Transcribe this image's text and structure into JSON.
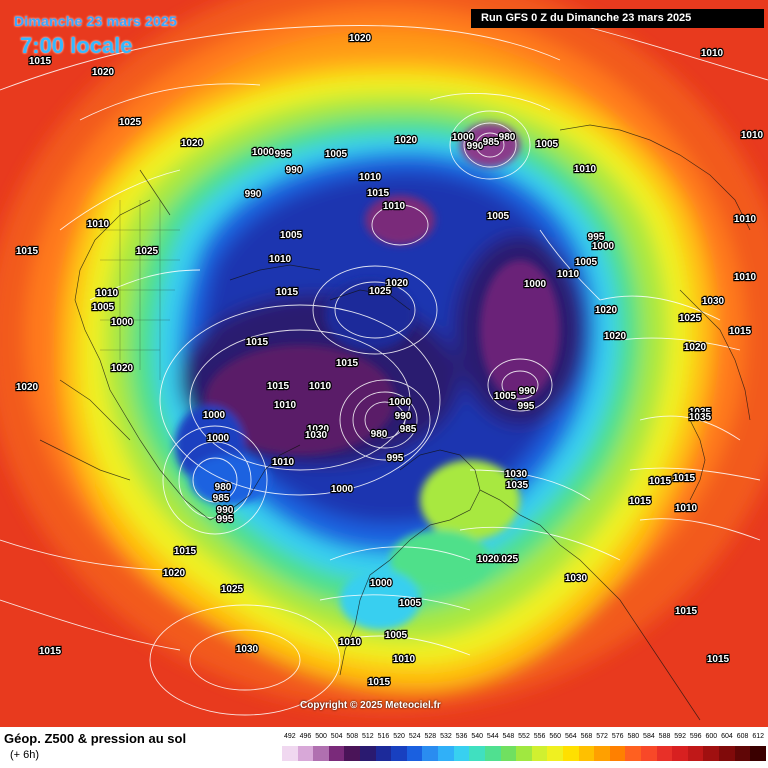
{
  "header": {
    "date": "Dimanche 23 mars 2025",
    "time": "7:00 locale",
    "run": "Run GFS 0 Z du Dimanche 23 mars 2025"
  },
  "copyright": "Copyright © 2025 Meteociel.fr",
  "footer": {
    "title": "Géop. Z500 & pression au sol",
    "subtitle": "(+ 6h)"
  },
  "scale": {
    "labels": [
      "492",
      "496",
      "500",
      "504",
      "508",
      "512",
      "516",
      "520",
      "524",
      "528",
      "532",
      "536",
      "540",
      "544",
      "548",
      "552",
      "556",
      "560",
      "564",
      "568",
      "572",
      "576",
      "580",
      "584",
      "588",
      "592",
      "596",
      "600",
      "604",
      "608",
      "612"
    ],
    "colors": [
      "#f0d8f0",
      "#d8a8d8",
      "#b070b0",
      "#7a2a7a",
      "#4a1458",
      "#2a1a70",
      "#1c2a9a",
      "#1840c0",
      "#1a60e0",
      "#2a8cf0",
      "#30b0f8",
      "#38d0f0",
      "#40e0c0",
      "#50e090",
      "#70e060",
      "#a0e840",
      "#d0f030",
      "#f0f020",
      "#ffe000",
      "#ffc000",
      "#ffa000",
      "#ff8000",
      "#ff6020",
      "#f84828",
      "#e83028",
      "#d82020",
      "#c01818",
      "#a01010",
      "#800a0a",
      "#600606",
      "#3a0000"
    ]
  },
  "isobar_labels": [
    {
      "text": "1020",
      "pos": "top-center"
    },
    {
      "text": "1015",
      "pos": "top-left"
    },
    {
      "text": "1020",
      "pos": "top-left-2"
    },
    {
      "text": "1025",
      "pos": "left-upper"
    },
    {
      "text": "1020",
      "pos": "left-upper-2"
    },
    {
      "text": "1000",
      "pos": "pacific-north"
    },
    {
      "text": "995",
      "pos": "pacific-north-2"
    },
    {
      "text": "990",
      "pos": "pacific-north-3"
    },
    {
      "text": "990",
      "pos": "pacific-north-4"
    },
    {
      "text": "1005",
      "pos": "pacific-north-5"
    },
    {
      "text": "1020",
      "pos": "siberia-north"
    },
    {
      "text": "1000",
      "pos": "siberia-low-1"
    },
    {
      "text": "990",
      "pos": "siberia-low-2"
    },
    {
      "text": "985",
      "pos": "siberia-low-3"
    },
    {
      "text": "980",
      "pos": "siberia-low-4"
    },
    {
      "text": "1005",
      "pos": "siberia-east"
    },
    {
      "text": "1010",
      "pos": "arctic-1"
    },
    {
      "text": "1015",
      "pos": "arctic-2"
    },
    {
      "text": "1010",
      "pos": "arctic-3"
    },
    {
      "text": "1005",
      "pos": "arctic-4"
    },
    {
      "text": "1010",
      "pos": "asia-east-1"
    },
    {
      "text": "995",
      "pos": "asia-east-2"
    },
    {
      "text": "1000",
      "pos": "asia-east-3"
    },
    {
      "text": "1005",
      "pos": "asia-east-4"
    },
    {
      "text": "1010",
      "pos": "asia-east-5"
    },
    {
      "text": "1010",
      "pos": "right-edge-1"
    },
    {
      "text": "1010",
      "pos": "right-edge-2"
    },
    {
      "text": "1010",
      "pos": "right-edge-3"
    },
    {
      "text": "1010",
      "pos": "right-edge-4"
    },
    {
      "text": "1010",
      "pos": "west-1"
    },
    {
      "text": "1025",
      "pos": "west-2"
    },
    {
      "text": "1015",
      "pos": "west-3"
    },
    {
      "text": "1010",
      "pos": "west-4"
    },
    {
      "text": "1005",
      "pos": "west-5"
    },
    {
      "text": "1000",
      "pos": "west-6"
    },
    {
      "text": "1005",
      "pos": "center-1"
    },
    {
      "text": "1010",
      "pos": "center-2"
    },
    {
      "text": "1015",
      "pos": "center-3"
    },
    {
      "text": "1020",
      "pos": "center-4"
    },
    {
      "text": "1025",
      "pos": "center-5"
    },
    {
      "text": "1000",
      "pos": "center-6"
    },
    {
      "text": "1020",
      "pos": "east-1"
    },
    {
      "text": "1020",
      "pos": "east-2"
    },
    {
      "text": "1030",
      "pos": "east-3"
    },
    {
      "text": "1025",
      "pos": "east-4"
    },
    {
      "text": "1015",
      "pos": "east-5"
    },
    {
      "text": "1020",
      "pos": "east-6"
    },
    {
      "text": "1015",
      "pos": "center-7"
    },
    {
      "text": "1015",
      "pos": "center-8"
    },
    {
      "text": "1020",
      "pos": "west-7"
    },
    {
      "text": "1020",
      "pos": "west-8"
    },
    {
      "text": "1015",
      "pos": "center-9"
    },
    {
      "text": "1010",
      "pos": "center-10"
    },
    {
      "text": "990",
      "pos": "east-low-1"
    },
    {
      "text": "1005",
      "pos": "east-low-2"
    },
    {
      "text": "995",
      "pos": "east-low-3"
    },
    {
      "text": "1000",
      "pos": "atl-west-1"
    },
    {
      "text": "1000",
      "pos": "atl-west-2"
    },
    {
      "text": "1010",
      "pos": "atl-center-1"
    },
    {
      "text": "1020",
      "pos": "atl-center-2"
    },
    {
      "text": "1030",
      "pos": "atl-center-3"
    },
    {
      "text": "1000",
      "pos": "atl-low-1"
    },
    {
      "text": "990",
      "pos": "atl-low-2"
    },
    {
      "text": "985",
      "pos": "atl-low-3"
    },
    {
      "text": "980",
      "pos": "atl-low-4"
    },
    {
      "text": "995",
      "pos": "atl-low-5"
    },
    {
      "text": "1035",
      "pos": "east-7"
    },
    {
      "text": "1035",
      "pos": "east-8"
    },
    {
      "text": "1015",
      "pos": "east-9"
    },
    {
      "text": "1010",
      "pos": "atl-1"
    },
    {
      "text": "980",
      "pos": "pac-low-1"
    },
    {
      "text": "985",
      "pos": "pac-low-2"
    },
    {
      "text": "990",
      "pos": "pac-low-3"
    },
    {
      "text": "995",
      "pos": "pac-low-4"
    },
    {
      "text": "1000",
      "pos": "atl-2"
    },
    {
      "text": "1030",
      "pos": "europe-1"
    },
    {
      "text": "1035",
      "pos": "europe-2"
    },
    {
      "text": "1015",
      "pos": "east-10"
    },
    {
      "text": "1015",
      "pos": "east-11"
    },
    {
      "text": "1010",
      "pos": "east-12"
    },
    {
      "text": "1015",
      "pos": "south-1"
    },
    {
      "text": "1020",
      "pos": "south-2"
    },
    {
      "text": "1025",
      "pos": "south-3"
    },
    {
      "text": "1025",
      "pos": "europe-3"
    },
    {
      "text": "1020",
      "pos": "europe-4"
    },
    {
      "text": "1000",
      "pos": "europe-5"
    },
    {
      "text": "1030",
      "pos": "europe-6"
    },
    {
      "text": "1005",
      "pos": "europe-7"
    },
    {
      "text": "1015",
      "pos": "east-13"
    },
    {
      "text": "1010",
      "pos": "europe-8"
    },
    {
      "text": "1005",
      "pos": "europe-9"
    },
    {
      "text": "1010",
      "pos": "europe-10"
    },
    {
      "text": "1030",
      "pos": "south-4"
    },
    {
      "text": "1015",
      "pos": "south-5"
    },
    {
      "text": "1015",
      "pos": "south-6"
    },
    {
      "text": "1015",
      "pos": "east-14"
    }
  ]
}
